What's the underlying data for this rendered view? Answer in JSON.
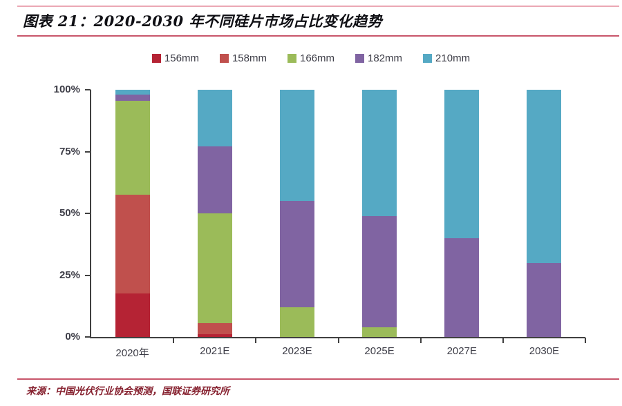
{
  "header": {
    "title": "图表 21：2020-2030 年不同硅片市场占比变化趋势"
  },
  "footer": {
    "source": "来源：中国光伏行业协会预测，国联证券研究所"
  },
  "colors": {
    "axis": "#404040",
    "tick_label": "#3c3c46",
    "rule_light": "#eba7b4",
    "rule_dark": "#c8556a",
    "source_text": "#86212f"
  },
  "chart_data": {
    "type": "bar",
    "stacked": true,
    "stack_total": 100,
    "title": "2020-2030 年不同硅片市场占比变化趋势",
    "xlabel": "",
    "ylabel": "",
    "ylim": [
      0,
      100
    ],
    "grid": false,
    "legend_position": "top",
    "categories": [
      "2020年",
      "2021E",
      "2023E",
      "2025E",
      "2027E",
      "2030E"
    ],
    "y_tick_values": [
      100,
      75,
      50,
      25,
      0
    ],
    "y_tick_labels": [
      "100%",
      "75%",
      "50%",
      "25%",
      "0%"
    ],
    "series": [
      {
        "name": "156mm",
        "color": "#b52334",
        "values": [
          17.5,
          1,
          0,
          0,
          0,
          0
        ]
      },
      {
        "name": "158mm",
        "color": "#c0504d",
        "values": [
          40,
          4.5,
          0,
          0,
          0,
          0
        ]
      },
      {
        "name": "166mm",
        "color": "#9bbb59",
        "values": [
          38,
          44.5,
          12,
          4,
          0,
          0
        ]
      },
      {
        "name": "182mm",
        "color": "#8064a2",
        "values": [
          2.5,
          27,
          43,
          45,
          40,
          30
        ]
      },
      {
        "name": "210mm",
        "color": "#55a9c4",
        "values": [
          2,
          23,
          45,
          51,
          60,
          70
        ]
      }
    ]
  }
}
